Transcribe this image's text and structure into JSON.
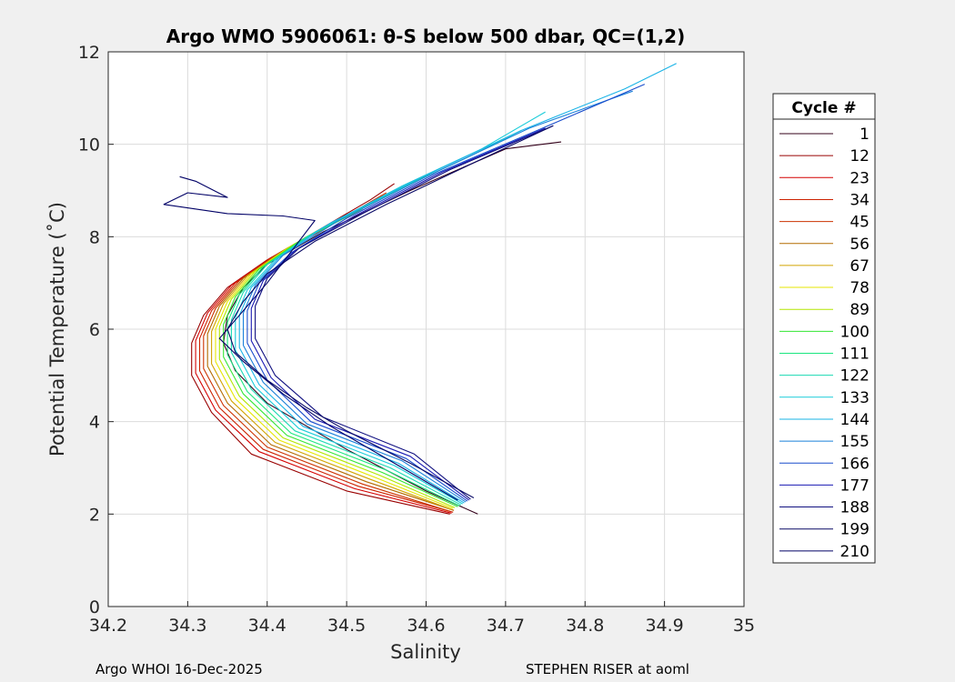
{
  "chart_data": {
    "type": "line",
    "title": "Argo WMO 5906061: θ-S below 500 dbar,  QC=(1,2)",
    "xlabel": "Salinity",
    "ylabel": "Potential Temperature (˚C)",
    "xlim": [
      34.2,
      35
    ],
    "ylim": [
      0,
      12
    ],
    "xticks": [
      "34.2",
      "34.3",
      "34.4",
      "34.5",
      "34.6",
      "34.7",
      "34.8",
      "34.9",
      "35"
    ],
    "yticks": [
      "0",
      "2",
      "4",
      "6",
      "8",
      "10",
      "12"
    ],
    "grid": true,
    "legend_title": "Cycle #",
    "legend_position": "right",
    "series": [
      {
        "name": "1",
        "color": "#33001a",
        "points": [
          [
            34.665,
            2.0
          ],
          [
            34.6,
            2.5
          ],
          [
            34.5,
            3.4
          ],
          [
            34.4,
            4.4
          ],
          [
            34.36,
            5.1
          ],
          [
            34.345,
            5.7
          ],
          [
            34.35,
            6.3
          ],
          [
            34.37,
            6.9
          ],
          [
            34.4,
            7.4
          ],
          [
            34.47,
            8.1
          ],
          [
            34.58,
            9.0
          ],
          [
            34.7,
            9.9
          ],
          [
            34.77,
            10.05
          ]
        ]
      },
      {
        "name": "12",
        "color": "#990000",
        "points": [
          [
            34.63,
            2.0
          ],
          [
            34.5,
            2.5
          ],
          [
            34.38,
            3.3
          ],
          [
            34.33,
            4.2
          ],
          [
            34.305,
            5.0
          ],
          [
            34.305,
            5.7
          ],
          [
            34.32,
            6.3
          ],
          [
            34.35,
            6.9
          ],
          [
            34.4,
            7.5
          ],
          [
            34.46,
            8.1
          ],
          [
            34.53,
            8.8
          ],
          [
            34.56,
            9.15
          ]
        ]
      },
      {
        "name": "23",
        "color": "#d40000",
        "points": [
          [
            34.632,
            2.02
          ],
          [
            34.51,
            2.55
          ],
          [
            34.39,
            3.35
          ],
          [
            34.335,
            4.25
          ],
          [
            34.31,
            5.05
          ],
          [
            34.31,
            5.75
          ],
          [
            34.325,
            6.35
          ],
          [
            34.355,
            6.95
          ],
          [
            34.405,
            7.55
          ],
          [
            34.47,
            8.15
          ],
          [
            34.54,
            8.85
          ]
        ]
      },
      {
        "name": "34",
        "color": "#cc2200",
        "points": [
          [
            34.634,
            2.04
          ],
          [
            34.515,
            2.6
          ],
          [
            34.395,
            3.4
          ],
          [
            34.34,
            4.3
          ],
          [
            34.315,
            5.1
          ],
          [
            34.315,
            5.8
          ],
          [
            34.33,
            6.4
          ],
          [
            34.36,
            7.0
          ],
          [
            34.41,
            7.6
          ],
          [
            34.475,
            8.2
          ],
          [
            34.545,
            8.9
          ]
        ]
      },
      {
        "name": "45",
        "color": "#cc3300",
        "points": [
          [
            34.63,
            2.06
          ],
          [
            34.52,
            2.65
          ],
          [
            34.4,
            3.45
          ],
          [
            34.345,
            4.35
          ],
          [
            34.32,
            5.15
          ],
          [
            34.32,
            5.85
          ],
          [
            34.335,
            6.45
          ],
          [
            34.365,
            7.05
          ],
          [
            34.415,
            7.65
          ],
          [
            34.48,
            8.25
          ],
          [
            34.55,
            8.95
          ]
        ]
      },
      {
        "name": "56",
        "color": "#b36b00",
        "points": [
          [
            34.635,
            2.08
          ],
          [
            34.525,
            2.7
          ],
          [
            34.405,
            3.5
          ],
          [
            34.35,
            4.4
          ],
          [
            34.325,
            5.2
          ],
          [
            34.325,
            5.9
          ],
          [
            34.34,
            6.5
          ],
          [
            34.37,
            7.1
          ],
          [
            34.42,
            7.7
          ],
          [
            34.485,
            8.3
          ]
        ]
      },
      {
        "name": "67",
        "color": "#d1a300",
        "points": [
          [
            34.632,
            2.1
          ],
          [
            34.53,
            2.75
          ],
          [
            34.41,
            3.55
          ],
          [
            34.355,
            4.45
          ],
          [
            34.33,
            5.25
          ],
          [
            34.33,
            5.95
          ],
          [
            34.345,
            6.55
          ],
          [
            34.375,
            7.15
          ],
          [
            34.425,
            7.75
          ],
          [
            34.49,
            8.35
          ]
        ]
      },
      {
        "name": "78",
        "color": "#e6e600",
        "points": [
          [
            34.634,
            2.12
          ],
          [
            34.535,
            2.8
          ],
          [
            34.415,
            3.6
          ],
          [
            34.36,
            4.5
          ],
          [
            34.335,
            5.3
          ],
          [
            34.335,
            6.0
          ],
          [
            34.35,
            6.6
          ],
          [
            34.38,
            7.2
          ],
          [
            34.43,
            7.8
          ],
          [
            34.495,
            8.4
          ]
        ]
      },
      {
        "name": "89",
        "color": "#b3e600",
        "points": [
          [
            34.636,
            2.14
          ],
          [
            34.54,
            2.85
          ],
          [
            34.42,
            3.65
          ],
          [
            34.365,
            4.55
          ],
          [
            34.34,
            5.35
          ],
          [
            34.34,
            6.05
          ],
          [
            34.355,
            6.65
          ],
          [
            34.385,
            7.25
          ],
          [
            34.435,
            7.85
          ]
        ]
      },
      {
        "name": "100",
        "color": "#33e633",
        "points": [
          [
            34.64,
            2.16
          ],
          [
            34.545,
            2.9
          ],
          [
            34.425,
            3.7
          ],
          [
            34.37,
            4.6
          ],
          [
            34.345,
            5.4
          ],
          [
            34.345,
            6.1
          ],
          [
            34.36,
            6.7
          ],
          [
            34.39,
            7.3
          ],
          [
            34.44,
            7.9
          ],
          [
            34.52,
            8.6
          ]
        ]
      },
      {
        "name": "111",
        "color": "#1ae680",
        "points": [
          [
            34.642,
            2.18
          ],
          [
            34.55,
            2.95
          ],
          [
            34.43,
            3.75
          ],
          [
            34.375,
            4.65
          ],
          [
            34.35,
            5.45
          ],
          [
            34.35,
            6.15
          ],
          [
            34.365,
            6.75
          ],
          [
            34.395,
            7.35
          ],
          [
            34.45,
            8.0
          ],
          [
            34.53,
            8.7
          ],
          [
            34.62,
            9.5
          ]
        ]
      },
      {
        "name": "122",
        "color": "#1ad9b3",
        "points": [
          [
            34.644,
            2.2
          ],
          [
            34.555,
            3.0
          ],
          [
            34.435,
            3.8
          ],
          [
            34.38,
            4.7
          ],
          [
            34.355,
            5.5
          ],
          [
            34.355,
            6.2
          ],
          [
            34.37,
            6.8
          ],
          [
            34.4,
            7.4
          ],
          [
            34.46,
            8.1
          ],
          [
            34.55,
            8.9
          ],
          [
            34.65,
            9.7
          ],
          [
            34.72,
            10.3
          ]
        ]
      },
      {
        "name": "133",
        "color": "#1accd9",
        "points": [
          [
            34.646,
            2.22
          ],
          [
            34.56,
            3.05
          ],
          [
            34.44,
            3.85
          ],
          [
            34.385,
            4.75
          ],
          [
            34.36,
            5.55
          ],
          [
            34.36,
            6.25
          ],
          [
            34.375,
            6.85
          ],
          [
            34.41,
            7.5
          ],
          [
            34.47,
            8.2
          ],
          [
            34.57,
            9.1
          ],
          [
            34.67,
            9.9
          ],
          [
            34.75,
            10.7
          ]
        ]
      },
      {
        "name": "144",
        "color": "#1ab3e6",
        "points": [
          [
            34.648,
            2.24
          ],
          [
            34.565,
            3.1
          ],
          [
            34.445,
            3.9
          ],
          [
            34.39,
            4.8
          ],
          [
            34.365,
            5.6
          ],
          [
            34.365,
            6.3
          ],
          [
            34.38,
            6.9
          ],
          [
            34.415,
            7.55
          ],
          [
            34.48,
            8.3
          ],
          [
            34.59,
            9.25
          ],
          [
            34.72,
            10.3
          ],
          [
            34.85,
            11.2
          ],
          [
            34.915,
            11.75
          ]
        ]
      },
      {
        "name": "155",
        "color": "#1a80d9",
        "points": [
          [
            34.65,
            2.26
          ],
          [
            34.57,
            3.15
          ],
          [
            34.45,
            3.95
          ],
          [
            34.395,
            4.85
          ],
          [
            34.37,
            5.65
          ],
          [
            34.37,
            6.35
          ],
          [
            34.385,
            6.95
          ],
          [
            34.42,
            7.6
          ],
          [
            34.49,
            8.35
          ],
          [
            34.6,
            9.3
          ],
          [
            34.73,
            10.35
          ],
          [
            34.86,
            11.15
          ]
        ]
      },
      {
        "name": "166",
        "color": "#1a4dcc",
        "points": [
          [
            34.652,
            2.28
          ],
          [
            34.575,
            3.2
          ],
          [
            34.455,
            4.0
          ],
          [
            34.4,
            4.9
          ],
          [
            34.375,
            5.7
          ],
          [
            34.375,
            6.4
          ],
          [
            34.39,
            7.0
          ],
          [
            34.43,
            7.65
          ],
          [
            34.5,
            8.4
          ],
          [
            34.61,
            9.35
          ],
          [
            34.74,
            10.3
          ],
          [
            34.875,
            11.3
          ]
        ]
      },
      {
        "name": "177",
        "color": "#1a1ab3",
        "points": [
          [
            34.654,
            2.3
          ],
          [
            34.58,
            3.25
          ],
          [
            34.46,
            4.05
          ],
          [
            34.405,
            4.95
          ],
          [
            34.38,
            5.75
          ],
          [
            34.38,
            6.45
          ],
          [
            34.395,
            7.05
          ],
          [
            34.435,
            7.7
          ],
          [
            34.51,
            8.45
          ],
          [
            34.62,
            9.4
          ],
          [
            34.75,
            10.35
          ]
        ]
      },
      {
        "name": "188",
        "color": "#101080",
        "points": [
          [
            34.656,
            2.32
          ],
          [
            34.585,
            3.3
          ],
          [
            34.47,
            4.1
          ],
          [
            34.41,
            5.0
          ],
          [
            34.385,
            5.8
          ],
          [
            34.385,
            6.5
          ],
          [
            34.4,
            7.1
          ],
          [
            34.44,
            7.75
          ],
          [
            34.52,
            8.5
          ],
          [
            34.63,
            9.45
          ],
          [
            34.76,
            10.4
          ]
        ]
      },
      {
        "name": "199",
        "color": "#0a0a66",
        "points": [
          [
            34.66,
            2.35
          ],
          [
            34.58,
            3.1
          ],
          [
            34.5,
            3.8
          ],
          [
            34.45,
            4.3
          ],
          [
            34.4,
            4.9
          ],
          [
            34.36,
            5.5
          ],
          [
            34.35,
            6.0
          ],
          [
            34.37,
            6.6
          ],
          [
            34.4,
            7.2
          ],
          [
            34.46,
            7.9
          ],
          [
            34.55,
            8.7
          ],
          [
            34.66,
            9.6
          ],
          [
            34.76,
            10.4
          ]
        ]
      },
      {
        "name": "210",
        "color": "#000066",
        "points": [
          [
            34.64,
            2.3
          ],
          [
            34.56,
            3.1
          ],
          [
            34.48,
            3.9
          ],
          [
            34.42,
            4.6
          ],
          [
            34.37,
            5.3
          ],
          [
            34.34,
            5.8
          ],
          [
            34.36,
            6.2
          ],
          [
            34.4,
            7.0
          ],
          [
            34.44,
            7.9
          ],
          [
            34.46,
            8.35
          ],
          [
            34.42,
            8.45
          ],
          [
            34.35,
            8.5
          ],
          [
            34.27,
            8.7
          ],
          [
            34.3,
            8.95
          ],
          [
            34.35,
            8.85
          ],
          [
            34.31,
            9.2
          ],
          [
            34.29,
            9.3
          ]
        ]
      }
    ]
  },
  "footer": {
    "left": "Argo WHOI 16-Dec-2025",
    "right": "STEPHEN RISER at aoml"
  }
}
